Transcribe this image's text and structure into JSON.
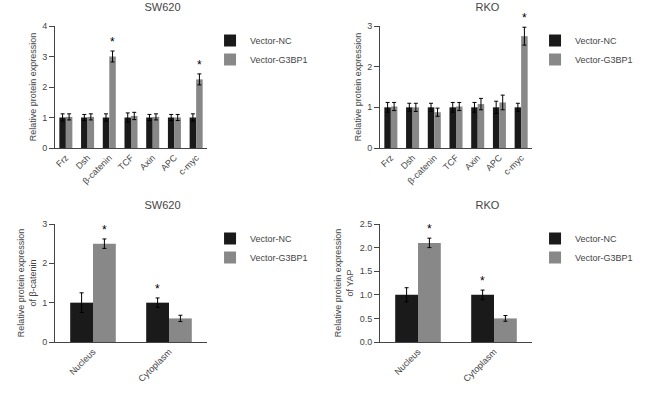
{
  "chart_data": [
    {
      "type": "bar",
      "title": "SW620",
      "categories": [
        "Frz",
        "Dsh",
        "β-catenin",
        "TCF",
        "Axin",
        "APC",
        "c-myc"
      ],
      "series": [
        {
          "name": "Vector-NC",
          "color": "#1a1a1a",
          "values": [
            1.0,
            1.0,
            1.0,
            1.0,
            1.0,
            1.0,
            1.0
          ],
          "errors": [
            0.12,
            0.1,
            0.12,
            0.15,
            0.1,
            0.1,
            0.12
          ]
        },
        {
          "name": "Vector-G3BP1",
          "color": "#888888",
          "values": [
            1.02,
            1.02,
            3.0,
            1.05,
            1.02,
            1.0,
            2.25
          ],
          "errors": [
            0.1,
            0.1,
            0.18,
            0.12,
            0.1,
            0.1,
            0.18
          ]
        }
      ],
      "ylim": [
        0,
        4
      ],
      "yticks": [
        0,
        1,
        2,
        3,
        4
      ],
      "ylabel": "Relative protein expression",
      "grid": false,
      "annotations": [
        {
          "text": "*",
          "category": "β-catenin",
          "series": "Vector-G3BP1"
        },
        {
          "text": "*",
          "category": "c-myc",
          "series": "Vector-G3BP1"
        }
      ]
    },
    {
      "type": "bar",
      "title": "RKO",
      "categories": [
        "Frz",
        "Dsh",
        "β-catenin",
        "TCF",
        "Axin",
        "APC",
        "c-myc"
      ],
      "series": [
        {
          "name": "Vector-NC",
          "color": "#1a1a1a",
          "values": [
            1.0,
            1.0,
            1.0,
            1.0,
            1.0,
            1.0,
            1.0
          ],
          "errors": [
            0.12,
            0.1,
            0.1,
            0.12,
            0.12,
            0.15,
            0.1
          ]
        },
        {
          "name": "Vector-G3BP1",
          "color": "#888888",
          "values": [
            1.02,
            1.0,
            0.88,
            1.02,
            1.08,
            1.12,
            2.75
          ],
          "errors": [
            0.1,
            0.1,
            0.1,
            0.1,
            0.14,
            0.18,
            0.22
          ]
        }
      ],
      "ylim": [
        0,
        3
      ],
      "yticks": [
        0,
        1,
        2,
        3
      ],
      "ylabel": "Relative protein expression",
      "grid": false,
      "annotations": [
        {
          "text": "*",
          "category": "c-myc",
          "series": "Vector-G3BP1"
        }
      ]
    },
    {
      "type": "bar",
      "title": "SW620",
      "categories": [
        "Nucleus",
        "Cytoplasm"
      ],
      "series": [
        {
          "name": "Vector-NC",
          "color": "#1a1a1a",
          "values": [
            1.0,
            1.0
          ],
          "errors": [
            0.25,
            0.12
          ]
        },
        {
          "name": "Vector-G3BP1",
          "color": "#888888",
          "values": [
            2.5,
            0.6
          ],
          "errors": [
            0.12,
            0.08
          ]
        }
      ],
      "ylim": [
        0,
        3
      ],
      "yticks": [
        0,
        1,
        2,
        3
      ],
      "ylabel": "Relative protein expression\nof β-catenin",
      "grid": false,
      "annotations": [
        {
          "text": "*",
          "category": "Nucleus",
          "series": "Vector-G3BP1"
        },
        {
          "text": "*",
          "category": "Cytoplasm",
          "series": "Vector-NC"
        }
      ]
    },
    {
      "type": "bar",
      "title": "RKO",
      "categories": [
        "Nucleus",
        "Cytoplasm"
      ],
      "series": [
        {
          "name": "Vector-NC",
          "color": "#1a1a1a",
          "values": [
            1.0,
            1.0
          ],
          "errors": [
            0.15,
            0.1
          ]
        },
        {
          "name": "Vector-G3BP1",
          "color": "#888888",
          "values": [
            2.1,
            0.5
          ],
          "errors": [
            0.1,
            0.06
          ]
        }
      ],
      "ylim": [
        0,
        2.5
      ],
      "yticks": [
        {
          "value": 0,
          "label": "0.0"
        },
        0.5,
        {
          "value": 1,
          "label": "1.0"
        },
        1.5,
        {
          "value": 2,
          "label": "2.0"
        },
        2.5
      ],
      "ylabel": "Relative protein expression\nof YAP",
      "grid": false,
      "annotations": [
        {
          "text": "*",
          "category": "Nucleus",
          "series": "Vector-G3BP1"
        },
        {
          "text": "*",
          "category": "Cytoplasm",
          "series": "Vector-NC"
        }
      ]
    }
  ]
}
